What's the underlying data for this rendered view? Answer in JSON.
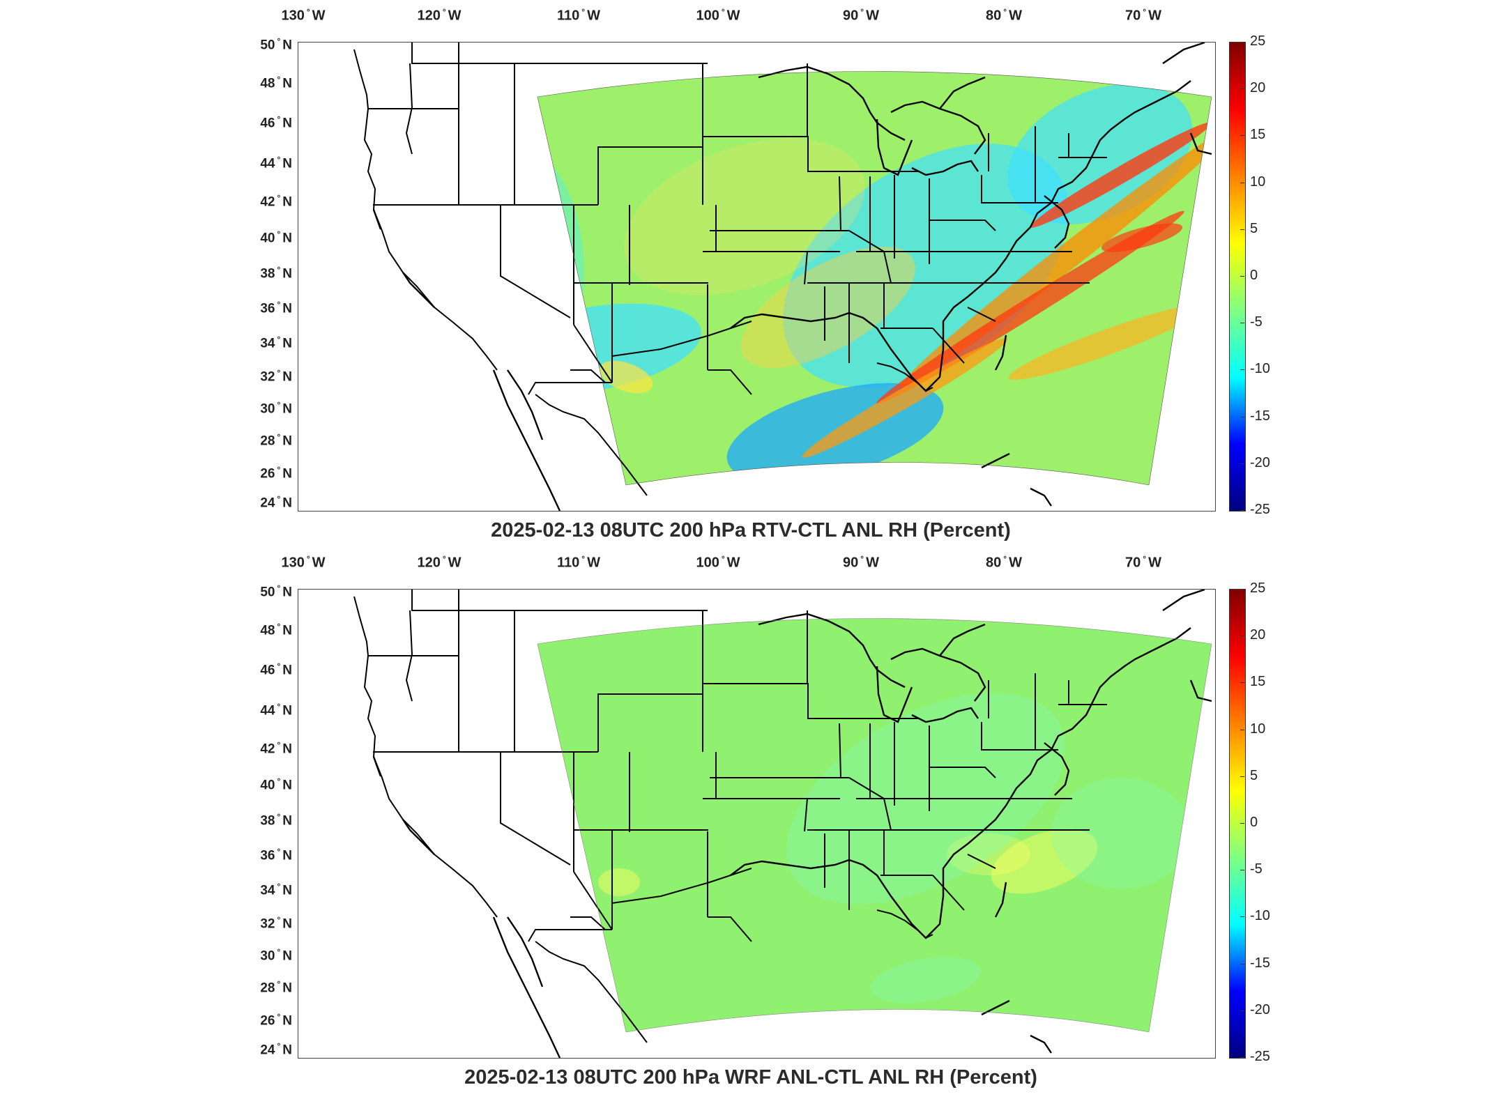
{
  "panels": [
    {
      "id": "top",
      "title": "2025-02-13 08UTC 200 hPa RTV-CTL ANL RH (Percent)",
      "longitude_labels": [
        "130",
        "120",
        "110",
        "100",
        "90",
        "80",
        "70"
      ],
      "longitude_hemisphere": "W",
      "latitude_labels": [
        "50",
        "48",
        "46",
        "44",
        "42",
        "40",
        "38",
        "36",
        "34",
        "32",
        "30",
        "28",
        "26",
        "24"
      ],
      "latitude_hemisphere": "N",
      "colorbar_ticks": [
        "25",
        "20",
        "15",
        "10",
        "5",
        "0",
        "-5",
        "-10",
        "-15",
        "-20",
        "-25"
      ],
      "colormap": "jet",
      "field_pattern": "mixed"
    },
    {
      "id": "bottom",
      "title": "2025-02-13 08UTC 200 hPa WRF ANL-CTL ANL RH (Percent)",
      "longitude_labels": [
        "130",
        "120",
        "110",
        "100",
        "90",
        "80",
        "70"
      ],
      "longitude_hemisphere": "W",
      "latitude_labels": [
        "50",
        "48",
        "46",
        "44",
        "42",
        "40",
        "38",
        "36",
        "34",
        "32",
        "30",
        "28",
        "26",
        "24"
      ],
      "latitude_hemisphere": "N",
      "colorbar_ticks": [
        "25",
        "20",
        "15",
        "10",
        "5",
        "0",
        "-5",
        "-10",
        "-15",
        "-20",
        "-25"
      ],
      "colormap": "jet",
      "field_pattern": "near-zero"
    }
  ],
  "colors": {
    "jet_dark_red": "#7f0000",
    "jet_red": "#ff0000",
    "jet_orange": "#ff8000",
    "jet_yellow": "#ffff00",
    "jet_green": "#80ff80",
    "jet_cyan": "#00ffff",
    "jet_blue": "#0000ff",
    "jet_dark_blue": "#00007f",
    "outline": "#000000",
    "frame": "#444444"
  }
}
